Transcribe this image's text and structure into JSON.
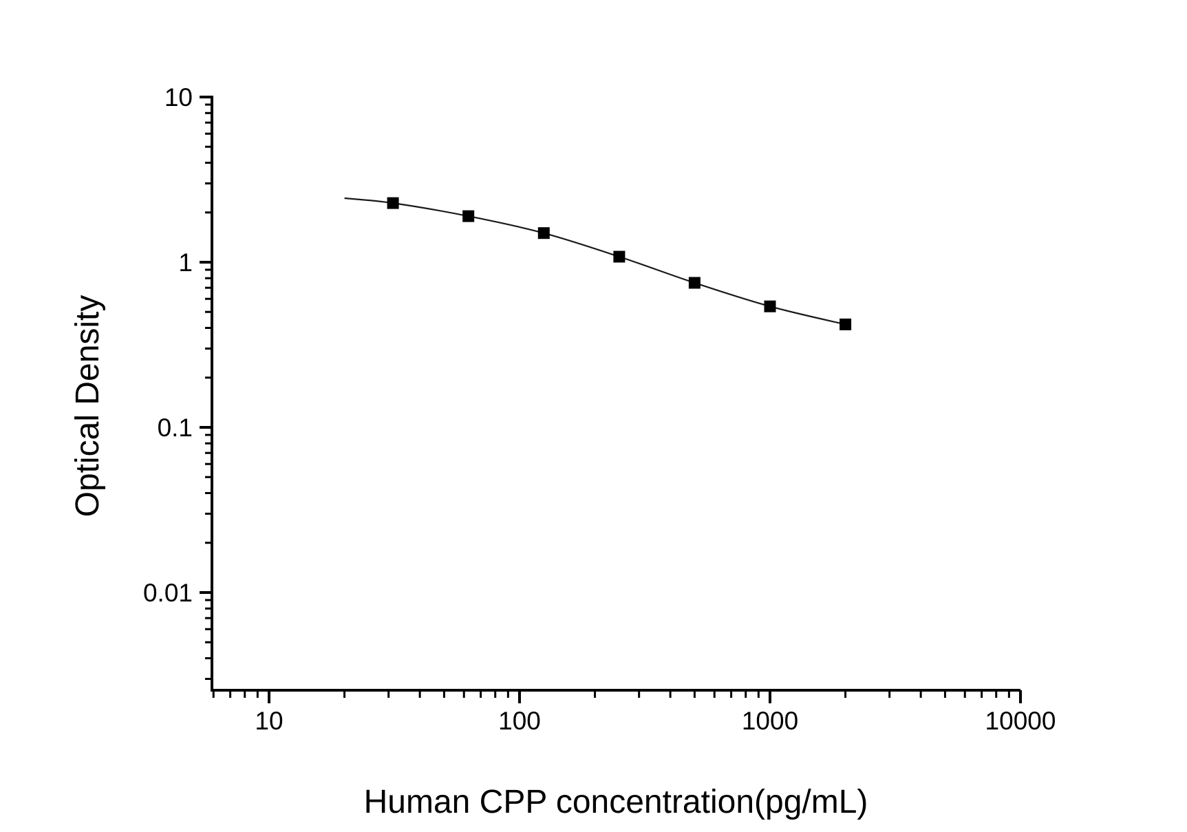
{
  "chart_data": {
    "type": "scatter",
    "title": "",
    "xlabel": "Human CPP concentration(pg/mL)",
    "ylabel": "Optical Density",
    "x_scale": "log",
    "y_scale": "log",
    "xlim": [
      5.9,
      10000
    ],
    "ylim": [
      0.0025,
      10
    ],
    "grid": false,
    "legend": "none",
    "x_ticks": [
      {
        "value": 10,
        "label": "10"
      },
      {
        "value": 100,
        "label": "100"
      },
      {
        "value": 1000,
        "label": "1000"
      },
      {
        "value": 10000,
        "label": "10000"
      }
    ],
    "y_ticks": [
      {
        "value": 10,
        "label": "10"
      },
      {
        "value": 1,
        "label": "1"
      },
      {
        "value": 0.1,
        "label": "0.1"
      },
      {
        "value": 0.01,
        "label": "0.01"
      }
    ],
    "series": [
      {
        "name": "human-cpp-standard-curve",
        "marker": "filled-square",
        "marker_color": "#000000",
        "line_color": "#1a1a1a",
        "points": [
          {
            "x": 31.25,
            "y": 2.28
          },
          {
            "x": 62.5,
            "y": 1.9
          },
          {
            "x": 125,
            "y": 1.5
          },
          {
            "x": 250,
            "y": 1.08
          },
          {
            "x": 500,
            "y": 0.75
          },
          {
            "x": 1000,
            "y": 0.54
          },
          {
            "x": 2000,
            "y": 0.42
          }
        ],
        "fit_line_start": {
          "x": 20,
          "y": 2.44
        }
      }
    ],
    "colors": {
      "axis": "#000000",
      "background": "#ffffff"
    }
  }
}
